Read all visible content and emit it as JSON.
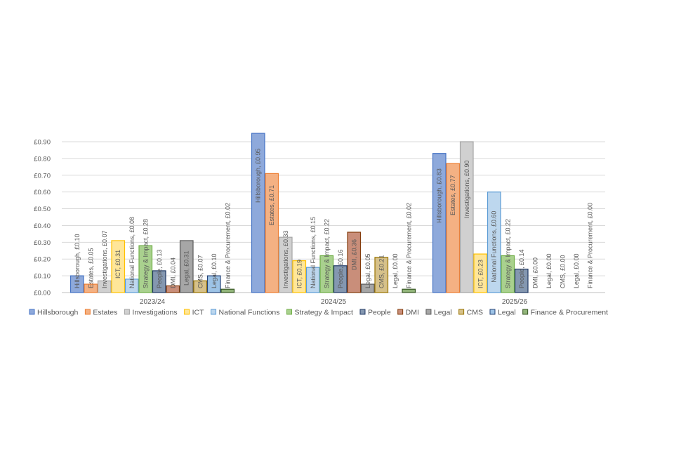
{
  "chart_data": {
    "type": "bar",
    "title": "",
    "xlabel": "",
    "ylabel": "",
    "ylim": [
      0,
      0.9
    ],
    "yticks": [
      "£0.00",
      "£0.10",
      "£0.20",
      "£0.30",
      "£0.40",
      "£0.50",
      "£0.60",
      "£0.70",
      "£0.80",
      "£0.90"
    ],
    "categories": [
      "2023/24",
      "2024/25",
      "2025/26"
    ],
    "grid": true,
    "legend_position": "bottom",
    "series": [
      {
        "name": "Hillsborough",
        "fill": "#8EA9DB",
        "stroke": "#4472C4",
        "values": [
          0.1,
          0.95,
          0.83
        ],
        "labels": [
          "Hillsborough, £0.10",
          "Hillsborough, £0.95",
          "Hillsborough, £0.83"
        ]
      },
      {
        "name": "Estates",
        "fill": "#F4B183",
        "stroke": "#ED7D31",
        "values": [
          0.05,
          0.71,
          0.77
        ],
        "labels": [
          "Estates, £0.05",
          "Estates, £0.71",
          "Estates, £0.77"
        ]
      },
      {
        "name": "Investigations",
        "fill": "#D0D0D0",
        "stroke": "#A5A5A5",
        "values": [
          0.07,
          0.33,
          0.9
        ],
        "labels": [
          "Investigations, £0.07",
          "Investigations, £0.33",
          "Investigations, £0.90"
        ]
      },
      {
        "name": "ICT",
        "fill": "#FFE699",
        "stroke": "#FFC000",
        "values": [
          0.31,
          0.19,
          0.23
        ],
        "labels": [
          "ICT, £0.31",
          "ICT, £0.19",
          "ICT, £0.23"
        ]
      },
      {
        "name": "National Functions",
        "fill": "#BDD7EE",
        "stroke": "#5B9BD5",
        "values": [
          0.08,
          0.15,
          0.6
        ],
        "labels": [
          "National Functions, £0.08",
          "National Functions, £0.15",
          "National Functions, £0.60"
        ]
      },
      {
        "name": "Strategy & Impact",
        "fill": "#A9D18E",
        "stroke": "#70AD47",
        "values": [
          0.28,
          0.22,
          0.22
        ],
        "labels": [
          "Strategy & Impact, £0.28",
          "Strategy & Impact, £0.22",
          "Strategy & Impact, £0.22"
        ]
      },
      {
        "name": "People",
        "fill": "#8497B0",
        "stroke": "#203864",
        "values": [
          0.13,
          0.16,
          0.14
        ],
        "labels": [
          "People, £0.13",
          "People, £0.16",
          "People, £0.14"
        ]
      },
      {
        "name": "DMI",
        "fill": "#C98E7A",
        "stroke": "#843C0C",
        "values": [
          0.04,
          0.36,
          0.0
        ],
        "labels": [
          "DMI, £0.04",
          "DMI, £0.36",
          "DMI, £0.00"
        ]
      },
      {
        "name": "Legal",
        "fill": "#A6A6A6",
        "stroke": "#595959",
        "values": [
          0.31,
          0.05,
          0.0
        ],
        "labels": [
          "Legal, £0.31",
          "Legal, £0.05",
          "Legal, £0.00"
        ]
      },
      {
        "name": "CMS",
        "fill": "#D6C18A",
        "stroke": "#997300",
        "values": [
          0.07,
          0.21,
          0.0
        ],
        "labels": [
          "CMS, £0.07",
          "CMS, £0.21",
          "CMS, £0.00"
        ]
      },
      {
        "name": "Legal",
        "fill": "#9DC3E6",
        "stroke": "#264478",
        "values": [
          0.1,
          0.0,
          0.0
        ],
        "labels": [
          "Legal, £0.10",
          "Legal, £0.00",
          "Legal, £0.00"
        ]
      },
      {
        "name": "Finance & Procurement",
        "fill": "#92B57A",
        "stroke": "#375623",
        "values": [
          0.02,
          0.02,
          0.0
        ],
        "labels": [
          "Finance & Procurement, £0.02",
          "Finance & Procurement, £0.02",
          "Finance & Procurement, £0.00"
        ]
      }
    ]
  }
}
